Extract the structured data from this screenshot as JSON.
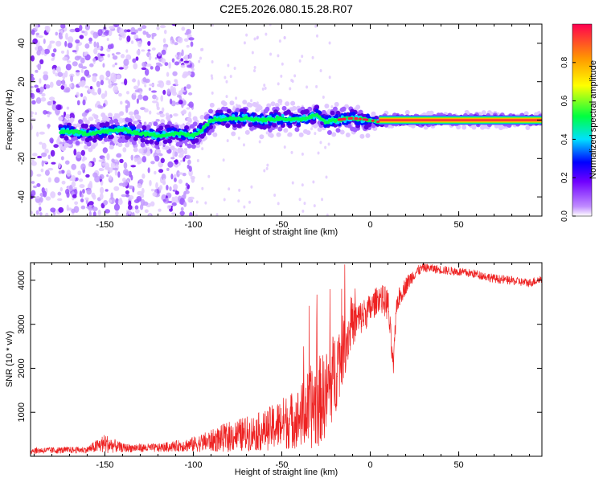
{
  "figure": {
    "title": "C2E5.2026.080.15.28.R07"
  },
  "chart_data": [
    {
      "type": "heatmap",
      "title": "C2E5.2026.080.15.28.R07",
      "xlabel": "Height of straight line (km)",
      "ylabel": "Frequency (Hz)",
      "xlim": [
        -192,
        97
      ],
      "ylim": [
        -50,
        50
      ],
      "x_ticks": [
        -150,
        -100,
        -50,
        0,
        50
      ],
      "x_tick_labels": [
        "-150",
        "-100",
        "-50",
        "0",
        "50"
      ],
      "y_ticks": [
        -40,
        -20,
        0,
        20,
        40
      ],
      "y_tick_labels": [
        "-40",
        "-20",
        "0",
        "20",
        "40"
      ],
      "colorbar": {
        "label": "Normalized spectral amplitude",
        "range": [
          0,
          1
        ],
        "ticks": [
          0,
          0.2,
          0.4,
          0.6,
          0.8
        ],
        "tick_labels": [
          "0.0",
          "0.2",
          "0.4",
          "0.6",
          "0.8"
        ],
        "colors": [
          "#ffffff",
          "#c08cff",
          "#7000ff",
          "#0000ff",
          "#00e0ff",
          "#00ff40",
          "#ffff00",
          "#ff9900",
          "#ff0050"
        ]
      },
      "ridge": {
        "x": [
          -170,
          -160,
          -150,
          -140,
          -130,
          -120,
          -110,
          -100,
          -95,
          -90,
          -80,
          -70,
          -60,
          -50,
          -40,
          -30,
          -25,
          -20,
          -10,
          0,
          5,
          10,
          20,
          40,
          60,
          80,
          97
        ],
        "freq": [
          -6,
          -7,
          -6,
          -5,
          -7,
          -8,
          -7,
          -8,
          -5,
          0,
          1,
          1,
          0,
          1,
          0,
          3,
          -1,
          0,
          1,
          0,
          -1,
          0,
          0,
          0,
          0,
          0,
          0
        ]
      }
    },
    {
      "type": "line",
      "xlabel": "Height of straight line (km)",
      "ylabel": "SNR (10 * v/v)",
      "xlim": [
        -192,
        97
      ],
      "ylim": [
        0,
        4400
      ],
      "x_ticks": [
        -150,
        -100,
        -50,
        0,
        50
      ],
      "x_tick_labels": [
        "-150",
        "-100",
        "-50",
        "0",
        "50"
      ],
      "y_ticks": [
        1000,
        2000,
        3000,
        4000
      ],
      "y_tick_labels": [
        "1000",
        "2000",
        "3000",
        "4000"
      ],
      "color": "#ee2222",
      "envelope": {
        "x": [
          -192,
          -170,
          -160,
          -150,
          -140,
          -130,
          -120,
          -110,
          -100,
          -90,
          -80,
          -70,
          -60,
          -50,
          -40,
          -35,
          -30,
          -28,
          -25,
          -20,
          -15,
          -10,
          -5,
          0,
          5,
          10,
          13,
          15,
          20,
          25,
          30,
          40,
          50,
          60,
          70,
          80,
          90,
          97
        ],
        "base": [
          100,
          110,
          120,
          200,
          150,
          150,
          150,
          180,
          200,
          250,
          300,
          350,
          400,
          500,
          600,
          700,
          800,
          900,
          1000,
          1500,
          2200,
          2800,
          3000,
          3200,
          3500,
          3300,
          1900,
          3400,
          3800,
          4100,
          4250,
          4200,
          4150,
          4100,
          4000,
          3950,
          3900,
          4000
        ],
        "spread": [
          150,
          150,
          150,
          450,
          200,
          200,
          200,
          250,
          350,
          500,
          700,
          800,
          900,
          1200,
          1400,
          1800,
          2200,
          2000,
          2000,
          2000,
          1500,
          1000,
          800,
          700,
          600,
          800,
          500,
          500,
          400,
          300,
          200,
          200,
          200,
          200,
          200,
          200,
          200,
          200
        ]
      }
    }
  ]
}
